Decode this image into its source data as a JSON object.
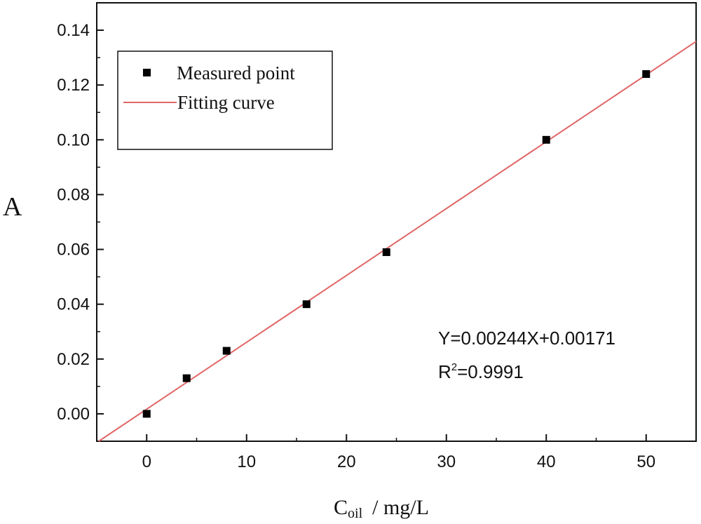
{
  "chart_data": {
    "type": "scatter",
    "title": "",
    "xlabel_main": "C",
    "xlabel_sub": "oil",
    "xlabel_unit": "/ mg/L",
    "ylabel": "A",
    "xlim": [
      -5,
      55
    ],
    "ylim": [
      -0.01,
      0.15
    ],
    "xticks": [
      0,
      10,
      20,
      30,
      40,
      50
    ],
    "xtick_labels": [
      "0",
      "10",
      "20",
      "30",
      "40",
      "50"
    ],
    "yticks": [
      0.0,
      0.02,
      0.04,
      0.06,
      0.08,
      0.1,
      0.12,
      0.14
    ],
    "ytick_labels": [
      "0.00",
      "0.02",
      "0.04",
      "0.06",
      "0.08",
      "0.10",
      "0.12",
      "0.14"
    ],
    "grid": false,
    "series": [
      {
        "name": "Measured point",
        "kind": "scatter",
        "marker": "square",
        "color": "#000000",
        "x": [
          0,
          4,
          8,
          16,
          24,
          40,
          50
        ],
        "y": [
          0.0,
          0.013,
          0.023,
          0.04,
          0.059,
          0.1,
          0.124
        ]
      },
      {
        "name": "Fitting curve",
        "kind": "line",
        "color": "#e06666",
        "slope": 0.00244,
        "intercept": 0.00171
      }
    ],
    "legend": {
      "placement": "top-left",
      "entries": [
        "Measured point",
        "Fitting curve"
      ]
    },
    "annotation": {
      "equation": "Y=0.00244X+0.00171",
      "r_prefix": "R",
      "r_sup": "2",
      "r_value": "=0.9991"
    }
  }
}
